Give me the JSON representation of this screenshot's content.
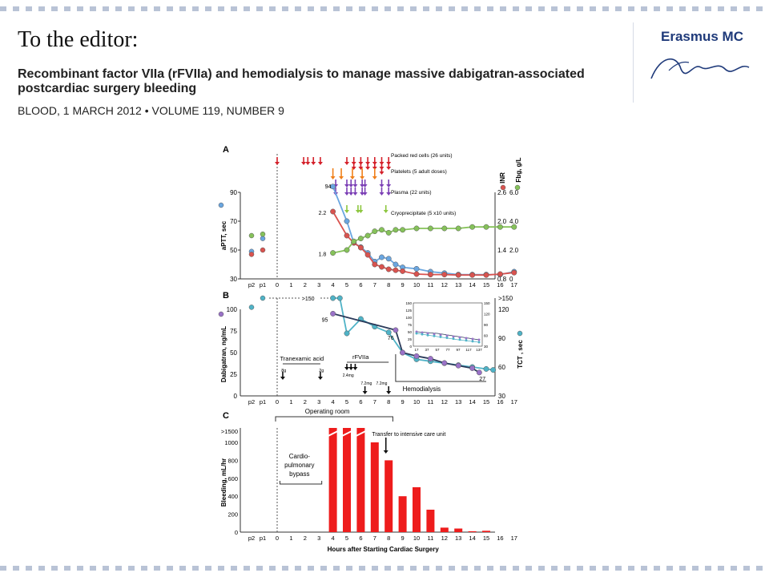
{
  "header": {
    "editor_heading": "To the editor:",
    "article_title": "Recombinant factor VIIa (rFVIIa) and hemodialysis to manage massive dabigatran-associated postcardiac surgery bleeding",
    "citation": "BLOOD, 1 MARCH 2012 • VOLUME 119, NUMBER 9"
  },
  "logo": {
    "name": "Erasmus MC",
    "script_icon": "erasmus-signature-logo"
  },
  "colors": {
    "red": "#d9534f",
    "blue": "#6aa6e0",
    "green": "#86c25a",
    "purple": "#9a72c8",
    "teal": "#4fb3c7",
    "darkline": "#2b3a5a",
    "bar": "#ee1c1c",
    "orange": "#f07f1a",
    "violet": "#7b3fb5",
    "lime": "#8dc63f",
    "crimson": "#d4202a"
  },
  "figure": {
    "x_axis": {
      "ticks": [
        "0",
        "1",
        "2",
        "3",
        "4",
        "5",
        "6",
        "7",
        "8",
        "9",
        "10",
        "11",
        "12",
        "13",
        "14",
        "15",
        "16",
        "17"
      ],
      "pre_ticks": [
        "p2",
        "p1"
      ],
      "label": "Hours after Starting Cardiac Surgery"
    },
    "panel_a": {
      "letter": "A",
      "ylabel": "aPTT, sec",
      "right_labels": [
        "INR",
        "Fbg, g/L"
      ],
      "y_ticks": [
        "90",
        "70",
        "50",
        "30"
      ],
      "inr_ticks": [
        "2.6",
        "2.0",
        "1.4",
        "0.8"
      ],
      "fbg_ticks": [
        "6.0",
        "4.0",
        "2.0",
        "0"
      ],
      "legend": [
        "Packed red cells (26 units)",
        "Platelets (5 adult doses)",
        "Plasma (22 units)",
        "Cryoprecipitate (5 x10 units)"
      ],
      "annotations": [
        "94",
        "2.2",
        "1.8"
      ],
      "chart_data": {
        "type": "line",
        "x": [
          4,
          5,
          5.5,
          6,
          6.5,
          7,
          7.5,
          8,
          8.5,
          9,
          10,
          11,
          12,
          13,
          14,
          15,
          16,
          17
        ],
        "series": [
          {
            "name": "aPTT",
            "values": [
              94,
              70,
              55,
              52,
              48,
              42,
              45,
              44,
              40,
              38,
              37,
              35,
              34,
              33,
              33,
              33,
              33,
              35
            ]
          },
          {
            "name": "INR",
            "values": [
              2.2,
              1.7,
              1.55,
              1.45,
              1.3,
              1.1,
              1.05,
              1.0,
              0.98,
              0.96,
              0.9,
              0.89,
              0.89,
              0.88,
              0.88,
              0.88,
              0.9,
              0.93
            ]
          },
          {
            "name": "Fbg",
            "values": [
              1.8,
              2.0,
              2.6,
              2.8,
              3.0,
              3.3,
              3.4,
              3.2,
              3.4,
              3.4,
              3.5,
              3.5,
              3.5,
              3.5,
              3.6,
              3.6,
              3.6,
              3.6
            ]
          }
        ],
        "pre_points": {
          "aPTT": [
            49,
            58
          ],
          "INR": [
            47,
            50
          ],
          "Fbg": [
            60,
            61
          ]
        }
      }
    },
    "panel_b": {
      "letter": "B",
      "ylabel": "Dabigatran, ng/mL",
      "right_label": "TCT , sec",
      "y_ticks": [
        "100",
        "75",
        "50",
        "25",
        "0"
      ],
      "tct_ticks": [
        ">150",
        "120",
        "90",
        "60",
        "30"
      ],
      "tct_break_label": ">150",
      "annotations": [
        "95",
        "76",
        "27"
      ],
      "tranexamic_label": "Tranexamic acid",
      "tranexamic_doses": [
        "8g",
        "2g"
      ],
      "rfviia_label": "rFVIIa",
      "rfviia_doses": [
        "2.4mg\nx3",
        "7.2mg",
        "7.2mg"
      ],
      "hemodialysis_label": "Hemodialysis",
      "inset": {
        "x_ticks": [
          "17",
          "37",
          "57",
          "77",
          "97",
          "117",
          "137"
        ],
        "y_ticks": [
          "150",
          "125",
          "100",
          "75",
          "50",
          "25",
          "0"
        ],
        "y2_ticks": [
          "150",
          "120",
          "90",
          "60",
          "30"
        ]
      },
      "chart_data": {
        "type": "line",
        "series": [
          {
            "name": "Dabigatran",
            "x": [
              4,
              8.5,
              9,
              10,
              11,
              12,
              13,
              14,
              14.5
            ],
            "values": [
              95,
              76,
              50,
              46,
              43,
              38,
              35,
              32,
              27
            ]
          },
          {
            "name": "TCT",
            "x": [
              4,
              4.5,
              5,
              6,
              7,
              8,
              9,
              10,
              11,
              12,
              13,
              14,
              15,
              15.5
            ],
            "values": [
              150,
              150,
              95,
              110,
              102,
              96,
              75,
              68,
              66,
              64,
              62,
              60,
              58,
              57
            ]
          }
        ]
      }
    },
    "panel_c": {
      "letter": "C",
      "ylabel": "Bleeding, mL/hr",
      "y_ticks": [
        ">1500",
        "1000",
        "800",
        "600",
        "400",
        "200",
        "0"
      ],
      "operating_room_label": "Operating room",
      "transfer_label": "Transfer to intensive care unit",
      "bypass_label": "Cardio-\npulmonary\nbypass",
      "chart_data": {
        "type": "bar",
        "x": [
          4,
          5,
          6,
          7,
          8,
          9,
          10,
          11,
          12,
          13,
          14,
          15
        ],
        "values": [
          1500,
          1500,
          1500,
          1000,
          800,
          400,
          500,
          250,
          50,
          40,
          10,
          15
        ],
        "broken_above": 1000
      }
    }
  }
}
